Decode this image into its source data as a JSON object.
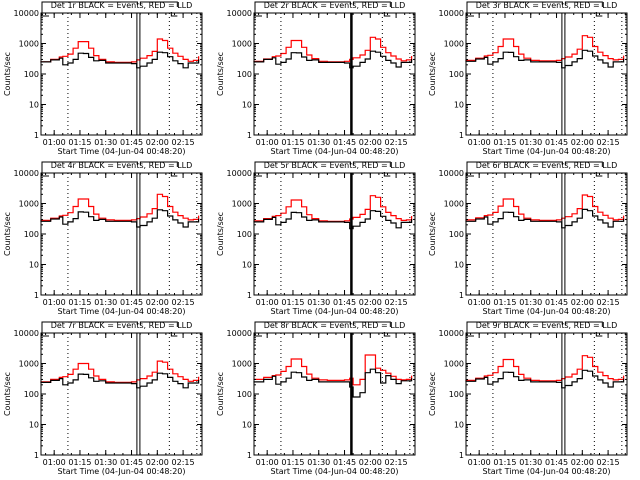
{
  "chart_data": [
    {
      "type": "line",
      "title": "Det 1r BLACK = Events, RED = LLD",
      "solid_marker": "double",
      "series": [
        {
          "color": "#ff0000",
          "values": [
            250,
            300,
            360,
            380,
            450,
            700,
            1150,
            1150,
            700,
            400,
            300,
            250,
            240,
            240,
            250,
            290,
            330,
            400,
            550,
            1400,
            1250,
            700,
            480,
            380,
            300,
            260,
            280,
            380
          ]
        },
        {
          "color": "#000000",
          "values": [
            250,
            290,
            330,
            200,
            230,
            300,
            480,
            470,
            350,
            270,
            280,
            230,
            230,
            230,
            220,
            160,
            180,
            230,
            300,
            520,
            500,
            370,
            270,
            220,
            160,
            230,
            230,
            300
          ]
        }
      ]
    },
    {
      "type": "line",
      "title": "Det 2r BLACK = Events, RED = LLD",
      "solid_marker": "single",
      "series": [
        {
          "color": "#ff0000",
          "values": [
            260,
            310,
            370,
            390,
            470,
            750,
            1250,
            1250,
            750,
            420,
            320,
            260,
            250,
            250,
            260,
            300,
            340,
            420,
            600,
            1600,
            1400,
            750,
            500,
            390,
            310,
            270,
            290,
            390
          ]
        },
        {
          "color": "#000000",
          "values": [
            250,
            300,
            340,
            210,
            240,
            310,
            500,
            490,
            360,
            280,
            290,
            240,
            240,
            240,
            230,
            160,
            180,
            240,
            310,
            560,
            520,
            380,
            280,
            230,
            170,
            240,
            240,
            310
          ]
        }
      ]
    },
    {
      "type": "line",
      "title": "Det 3r BLACK = Events, RED = LLD",
      "solid_marker": "double",
      "series": [
        {
          "color": "#ff0000",
          "values": [
            280,
            330,
            390,
            410,
            500,
            800,
            1400,
            1400,
            800,
            450,
            330,
            280,
            270,
            270,
            280,
            320,
            360,
            450,
            650,
            1800,
            1600,
            800,
            520,
            400,
            320,
            290,
            300,
            400
          ]
        },
        {
          "color": "#000000",
          "values": [
            260,
            310,
            350,
            210,
            250,
            320,
            520,
            510,
            370,
            280,
            290,
            250,
            250,
            250,
            240,
            160,
            190,
            250,
            320,
            600,
            560,
            390,
            290,
            230,
            170,
            250,
            250,
            320
          ]
        }
      ]
    },
    {
      "type": "line",
      "title": "Det 4r BLACK = Events, RED = LLD",
      "solid_marker": "double",
      "series": [
        {
          "color": "#ff0000",
          "values": [
            280,
            330,
            390,
            410,
            500,
            800,
            1400,
            1400,
            800,
            450,
            330,
            290,
            280,
            280,
            290,
            320,
            360,
            460,
            680,
            2000,
            1700,
            800,
            520,
            400,
            330,
            290,
            300,
            400
          ]
        },
        {
          "color": "#000000",
          "values": [
            260,
            310,
            360,
            210,
            250,
            320,
            530,
            520,
            370,
            280,
            300,
            260,
            260,
            260,
            250,
            170,
            190,
            250,
            330,
            620,
            580,
            390,
            290,
            230,
            170,
            250,
            250,
            320
          ]
        }
      ]
    },
    {
      "type": "line",
      "title": "Det 5r BLACK = Events, RED = LLD",
      "solid_marker": "single",
      "series": [
        {
          "color": "#ff0000",
          "values": [
            270,
            320,
            380,
            400,
            480,
            780,
            1300,
            1300,
            780,
            430,
            320,
            270,
            260,
            260,
            270,
            310,
            350,
            440,
            640,
            1800,
            1600,
            780,
            510,
            400,
            320,
            280,
            290,
            390
          ]
        },
        {
          "color": "#000000",
          "values": [
            250,
            300,
            350,
            200,
            240,
            310,
            510,
            500,
            360,
            280,
            290,
            250,
            250,
            250,
            240,
            150,
            180,
            240,
            310,
            580,
            550,
            380,
            280,
            230,
            160,
            240,
            240,
            310
          ]
        }
      ]
    },
    {
      "type": "line",
      "title": "Det 6r BLACK = Events, RED = LLD",
      "solid_marker": "double",
      "series": [
        {
          "color": "#ff0000",
          "values": [
            290,
            340,
            400,
            420,
            510,
            820,
            1400,
            1400,
            800,
            450,
            330,
            290,
            280,
            280,
            290,
            330,
            370,
            460,
            680,
            1900,
            1700,
            800,
            520,
            410,
            330,
            290,
            300,
            400
          ]
        },
        {
          "color": "#000000",
          "values": [
            260,
            310,
            360,
            210,
            250,
            320,
            520,
            510,
            370,
            280,
            300,
            260,
            260,
            260,
            250,
            160,
            190,
            250,
            330,
            640,
            580,
            390,
            290,
            230,
            170,
            260,
            260,
            320
          ]
        }
      ]
    },
    {
      "type": "line",
      "title": "Det 7r BLACK = Events, RED = LLD",
      "solid_marker": "double",
      "series": [
        {
          "color": "#ff0000",
          "values": [
            250,
            300,
            350,
            370,
            440,
            650,
            1000,
            1000,
            650,
            390,
            300,
            250,
            240,
            240,
            250,
            290,
            320,
            390,
            520,
            1200,
            1100,
            650,
            460,
            370,
            300,
            260,
            280,
            370
          ]
        },
        {
          "color": "#000000",
          "values": [
            240,
            280,
            320,
            200,
            230,
            290,
            450,
            440,
            340,
            260,
            270,
            230,
            230,
            230,
            220,
            160,
            180,
            230,
            290,
            480,
            460,
            350,
            260,
            220,
            160,
            230,
            230,
            290
          ]
        }
      ]
    },
    {
      "type": "line",
      "title": "Det 8r BLACK = Events, RED = LLD",
      "solid_marker": "single",
      "series": [
        {
          "color": "#ff0000",
          "values": [
            300,
            350,
            400,
            420,
            550,
            800,
            1400,
            1400,
            800,
            450,
            330,
            290,
            280,
            280,
            290,
            330,
            200,
            300,
            1900,
            1900,
            700,
            600,
            480,
            380,
            300,
            290,
            300,
            400
          ]
        },
        {
          "color": "#000000",
          "values": [
            250,
            300,
            380,
            210,
            250,
            330,
            520,
            500,
            360,
            280,
            300,
            250,
            250,
            250,
            250,
            170,
            80,
            110,
            500,
            650,
            500,
            230,
            400,
            300,
            220,
            270,
            270,
            330
          ]
        }
      ]
    },
    {
      "type": "line",
      "title": "Det 9r BLACK = Events, RED = LLD",
      "solid_marker": "double",
      "series": [
        {
          "color": "#ff0000",
          "values": [
            280,
            330,
            390,
            410,
            500,
            800,
            1350,
            1350,
            800,
            440,
            330,
            280,
            270,
            270,
            280,
            320,
            360,
            450,
            650,
            1800,
            1600,
            800,
            520,
            400,
            320,
            290,
            300,
            400
          ]
        },
        {
          "color": "#000000",
          "values": [
            260,
            310,
            350,
            210,
            250,
            320,
            520,
            510,
            370,
            280,
            290,
            250,
            250,
            250,
            240,
            160,
            190,
            250,
            320,
            600,
            560,
            390,
            290,
            230,
            170,
            250,
            250,
            320
          ]
        }
      ]
    }
  ],
  "shared": {
    "x": [
      "00:52",
      "00:58",
      "01:03",
      "01:05",
      "01:08",
      "01:11",
      "01:14",
      "01:17",
      "01:20",
      "01:23",
      "01:26",
      "01:30",
      "01:35",
      "01:40",
      "01:45",
      "01:48",
      "01:50",
      "01:54",
      "01:57",
      "02:00",
      "02:03",
      "02:06",
      "02:09",
      "02:12",
      "02:15",
      "02:18",
      "02:21",
      "02:24"
    ],
    "xlabel": "Start Time (04-Jun-04 00:48:20)",
    "ylabel": "Counts/sec",
    "xlim": [
      "00:52:20",
      "02:26:00"
    ],
    "ylim": [
      1,
      10000
    ],
    "yscale": "log",
    "xticks": [
      "01:00",
      "01:15",
      "01:30",
      "01:45",
      "02:00",
      "02:15"
    ],
    "yticks": [
      "1",
      "10",
      "100",
      "1000",
      "10000"
    ],
    "dotted_lines": [
      "01:08",
      "02:07",
      "02:23"
    ],
    "solid_line": "01:49",
    "grid": false
  }
}
